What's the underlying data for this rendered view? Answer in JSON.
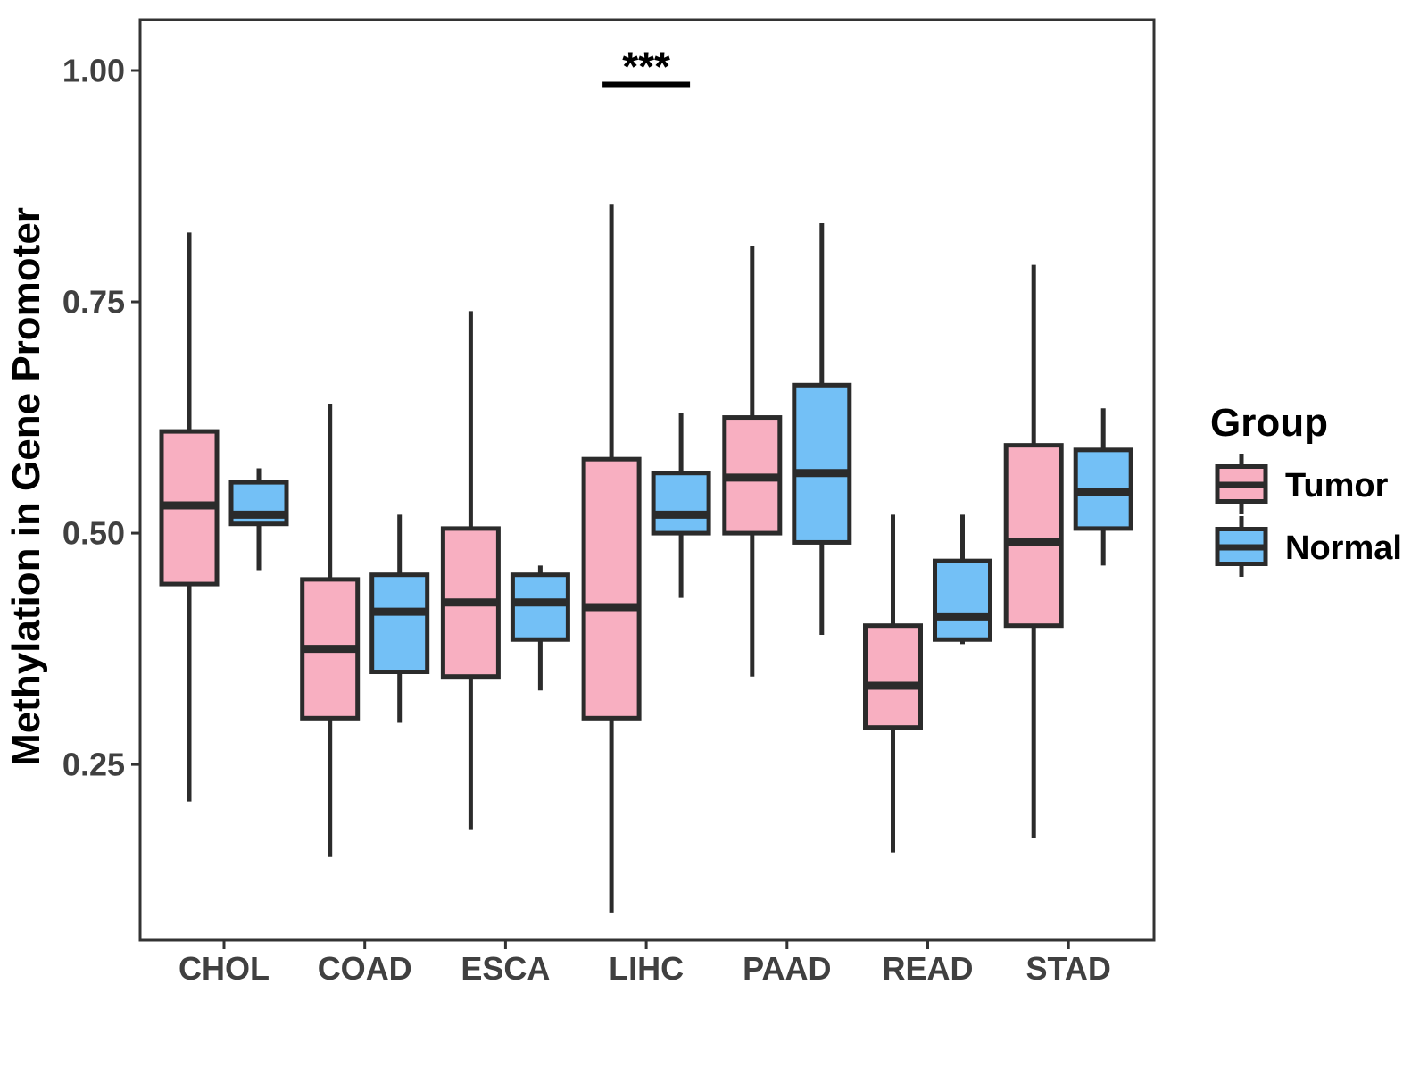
{
  "colors": {
    "tumor_fill": "#F8AFC1",
    "normal_fill": "#73C0F6",
    "box_stroke": "#2B2B2B",
    "axis_text": "#404040",
    "title_text": "#000000",
    "panel_border": "#333333",
    "background": "#FFFFFF"
  },
  "chart_data": {
    "type": "grouped_boxplot",
    "title": "",
    "xlabel": "",
    "ylabel": "Methylation in Gene Promoter",
    "categories": [
      "CHOL",
      "COAD",
      "ESCA",
      "LIHC",
      "PAAD",
      "READ",
      "STAD"
    ],
    "y_tick_values": [
      0.25,
      0.5,
      0.75,
      1.0
    ],
    "y_tick_labels": [
      "0.25",
      "0.50",
      "0.75",
      "1.00"
    ],
    "ylim": [
      0.06,
      1.055
    ],
    "grid": "off",
    "legend": {
      "title": "Group",
      "position": "right",
      "entries": [
        {
          "label": "Tumor",
          "color": "#F8AFC1"
        },
        {
          "label": "Normal",
          "color": "#73C0F6"
        }
      ]
    },
    "series": [
      {
        "name": "Tumor",
        "color": "#F8AFC1",
        "boxes": [
          {
            "category": "CHOL",
            "whisker_low": 0.21,
            "q1": 0.445,
            "median": 0.53,
            "q3": 0.61,
            "whisker_high": 0.825
          },
          {
            "category": "COAD",
            "whisker_low": 0.15,
            "q1": 0.3,
            "median": 0.375,
            "q3": 0.45,
            "whisker_high": 0.64
          },
          {
            "category": "ESCA",
            "whisker_low": 0.18,
            "q1": 0.345,
            "median": 0.425,
            "q3": 0.505,
            "whisker_high": 0.74
          },
          {
            "category": "LIHC",
            "whisker_low": 0.09,
            "q1": 0.3,
            "median": 0.42,
            "q3": 0.58,
            "whisker_high": 0.855
          },
          {
            "category": "PAAD",
            "whisker_low": 0.345,
            "q1": 0.5,
            "median": 0.56,
            "q3": 0.625,
            "whisker_high": 0.81
          },
          {
            "category": "READ",
            "whisker_low": 0.155,
            "q1": 0.29,
            "median": 0.335,
            "q3": 0.4,
            "whisker_high": 0.52
          },
          {
            "category": "STAD",
            "whisker_low": 0.17,
            "q1": 0.4,
            "median": 0.49,
            "q3": 0.595,
            "whisker_high": 0.79
          }
        ]
      },
      {
        "name": "Normal",
        "color": "#73C0F6",
        "boxes": [
          {
            "category": "CHOL",
            "whisker_low": 0.46,
            "q1": 0.51,
            "median": 0.52,
            "q3": 0.555,
            "whisker_high": 0.57
          },
          {
            "category": "COAD",
            "whisker_low": 0.295,
            "q1": 0.35,
            "median": 0.415,
            "q3": 0.455,
            "whisker_high": 0.52
          },
          {
            "category": "ESCA",
            "whisker_low": 0.33,
            "q1": 0.385,
            "median": 0.425,
            "q3": 0.455,
            "whisker_high": 0.465
          },
          {
            "category": "LIHC",
            "whisker_low": 0.43,
            "q1": 0.5,
            "median": 0.52,
            "q3": 0.565,
            "whisker_high": 0.63
          },
          {
            "category": "PAAD",
            "whisker_low": 0.39,
            "q1": 0.49,
            "median": 0.565,
            "q3": 0.66,
            "whisker_high": 0.835
          },
          {
            "category": "READ",
            "whisker_low": 0.38,
            "q1": 0.385,
            "median": 0.41,
            "q3": 0.47,
            "whisker_high": 0.52
          },
          {
            "category": "STAD",
            "whisker_low": 0.465,
            "q1": 0.505,
            "median": 0.545,
            "q3": 0.59,
            "whisker_high": 0.635
          }
        ]
      }
    ],
    "annotations": [
      {
        "text": "***",
        "category": "LIHC",
        "bar_y": 0.985
      }
    ]
  }
}
